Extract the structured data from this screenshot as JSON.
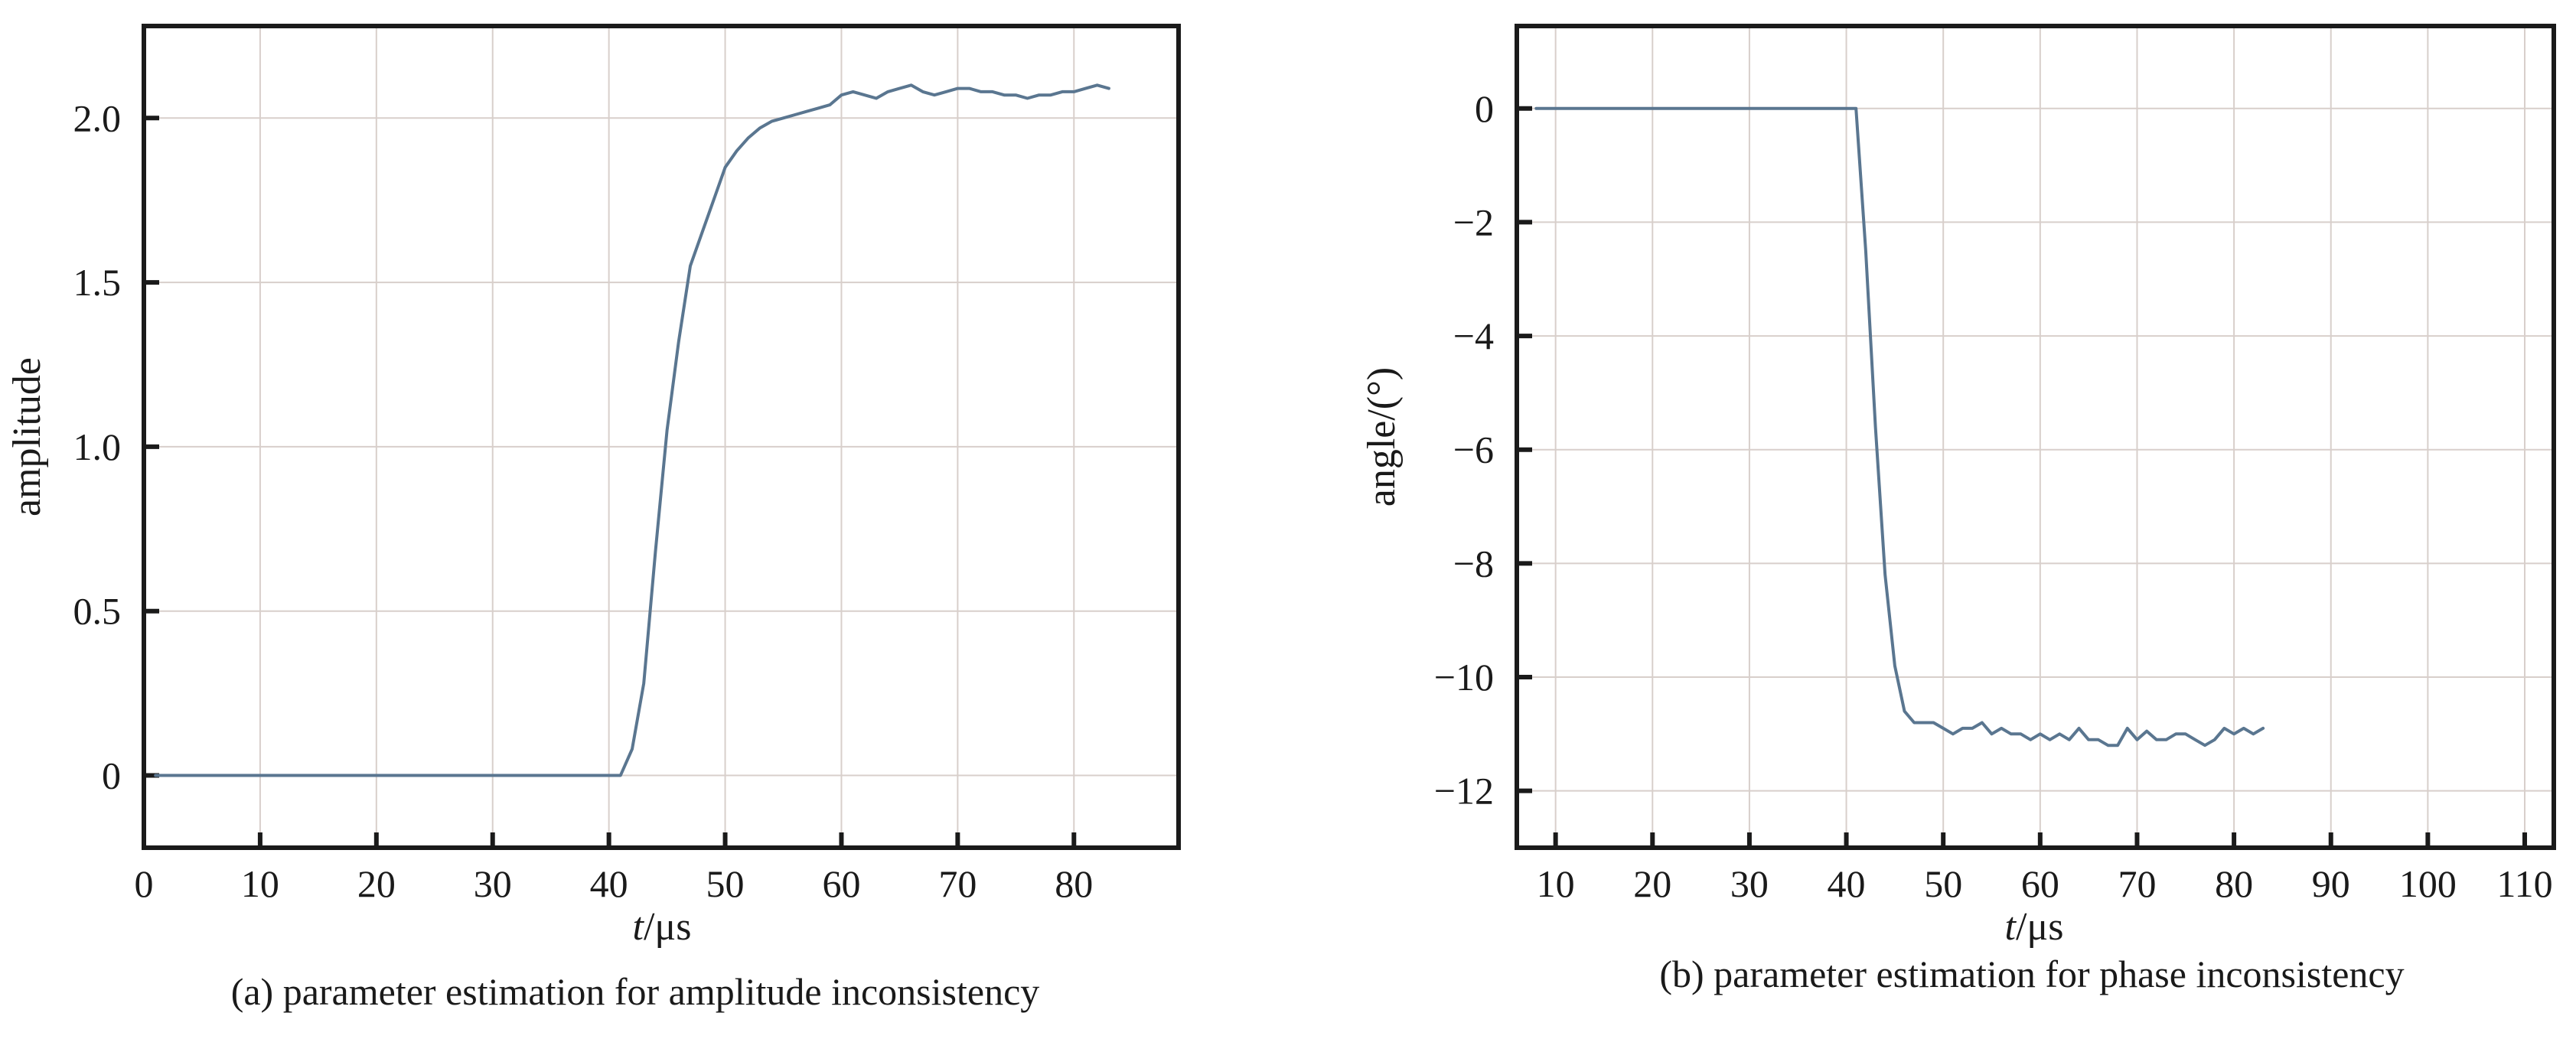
{
  "chart_data": [
    {
      "type": "line",
      "panel": "a",
      "caption": "(a) parameter estimation for amplitude inconsistency",
      "xlabel_italic": "t",
      "xlabel_rest": "/μs",
      "ylabel": "amplitude",
      "xlim": [
        0,
        89
      ],
      "ylim": [
        -0.22,
        2.28
      ],
      "xticks": [
        0,
        10,
        20,
        30,
        40,
        50,
        60,
        70,
        80
      ],
      "xtick_labels": [
        "0",
        "10",
        "20",
        "30",
        "40",
        "50",
        "60",
        "70",
        "80"
      ],
      "yticks": [
        0,
        0.5,
        1.0,
        1.5,
        2.0
      ],
      "ytick_labels": [
        "0",
        "0.5",
        "1.0",
        "1.5",
        "2.0"
      ],
      "xgrid": [
        0,
        10,
        20,
        30,
        40,
        50,
        60,
        70,
        80
      ],
      "ygrid": [
        0,
        0.5,
        1.0,
        1.5,
        2.0
      ],
      "grid": true,
      "series": [
        {
          "color": "#5a7690",
          "x": [
            1,
            41,
            42,
            43,
            44,
            45,
            46,
            47,
            48,
            49,
            50,
            51,
            52,
            53,
            54,
            55,
            56,
            57,
            58,
            59,
            60,
            61,
            62,
            63,
            64,
            65,
            66,
            67,
            68,
            69,
            70,
            71,
            72,
            73,
            74,
            75,
            76,
            77,
            78,
            79,
            80,
            81,
            82,
            83
          ],
          "y": [
            0,
            0,
            0.08,
            0.28,
            0.68,
            1.05,
            1.32,
            1.55,
            1.65,
            1.75,
            1.85,
            1.9,
            1.94,
            1.97,
            1.99,
            2.0,
            2.01,
            2.02,
            2.03,
            2.04,
            2.07,
            2.08,
            2.07,
            2.06,
            2.08,
            2.09,
            2.1,
            2.08,
            2.07,
            2.08,
            2.09,
            2.09,
            2.08,
            2.08,
            2.07,
            2.07,
            2.06,
            2.07,
            2.07,
            2.08,
            2.08,
            2.09,
            2.1,
            2.09
          ]
        }
      ]
    },
    {
      "type": "line",
      "panel": "b",
      "caption": "(b) parameter estimation for phase inconsistency",
      "xlabel_italic": "t",
      "xlabel_rest": "/μs",
      "ylabel": "angle/(°)",
      "xlim": [
        6,
        113
      ],
      "ylim": [
        -13,
        1.45
      ],
      "xticks": [
        10,
        20,
        30,
        40,
        50,
        60,
        70,
        80,
        90,
        100,
        110
      ],
      "xtick_labels": [
        "10",
        "20",
        "30",
        "40",
        "50",
        "60",
        "70",
        "80",
        "90",
        "100",
        "110"
      ],
      "yticks": [
        0,
        -2,
        -4,
        -6,
        -8,
        -10,
        -12
      ],
      "ytick_labels": [
        "0",
        "−2",
        "−4",
        "−6",
        "−8",
        "−10",
        "−12"
      ],
      "xgrid": [
        10,
        20,
        30,
        40,
        50,
        60,
        70,
        80,
        90,
        100,
        110
      ],
      "ygrid": [
        0,
        -2,
        -4,
        -6,
        -8,
        -10,
        -12
      ],
      "grid": true,
      "series": [
        {
          "color": "#5a7690",
          "x": [
            8,
            41,
            42,
            43,
            44,
            45,
            46,
            47,
            48,
            49,
            50,
            51,
            52,
            53,
            54,
            55,
            56,
            57,
            58,
            59,
            60,
            61,
            62,
            63,
            64,
            65,
            66,
            67,
            68,
            69,
            70,
            71,
            72,
            73,
            74,
            75,
            76,
            77,
            78,
            79,
            80,
            81,
            82,
            83
          ],
          "y": [
            0,
            0,
            -2.5,
            -5.6,
            -8.2,
            -9.8,
            -10.6,
            -10.8,
            -10.8,
            -10.8,
            -10.9,
            -11.0,
            -10.9,
            -10.9,
            -10.8,
            -11.0,
            -10.9,
            -11.0,
            -11.0,
            -11.1,
            -11.0,
            -11.1,
            -11.0,
            -11.1,
            -10.9,
            -11.1,
            -11.1,
            -11.2,
            -11.2,
            -10.9,
            -11.1,
            -10.95,
            -11.1,
            -11.1,
            -11.0,
            -11.0,
            -11.1,
            -11.2,
            -11.1,
            -10.9,
            -11.0,
            -10.9,
            -11.0,
            -10.9
          ]
        }
      ]
    }
  ]
}
